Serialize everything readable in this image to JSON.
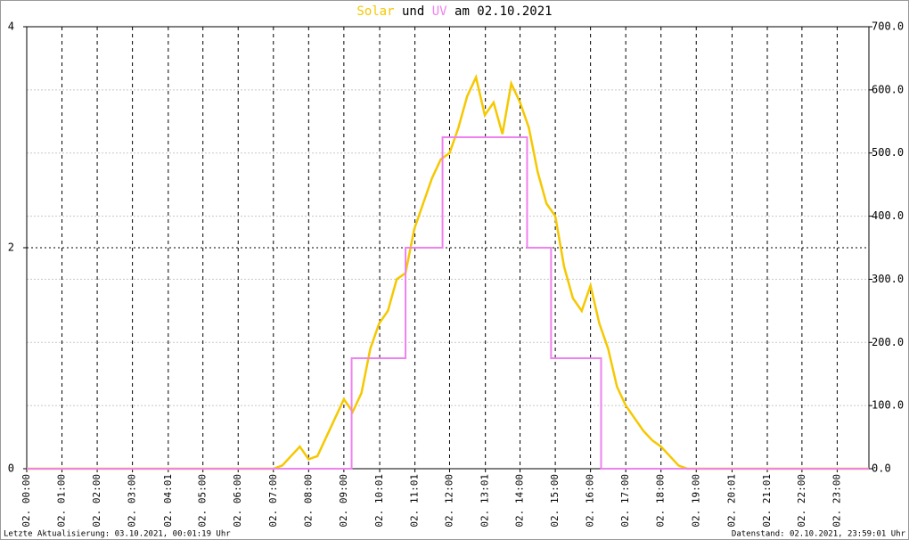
{
  "chart_data": {
    "type": "line",
    "title_connector": "und",
    "title_date": "am 02.10.2021",
    "footer_left": "Letzte Aktualisierung: 03.10.2021, 00:01:19 Uhr",
    "footer_right": "Datenstand: 02.10.2021, 23:59:01 Uhr",
    "xlim": [
      0,
      23.9
    ],
    "xticks": [
      {
        "value": 0,
        "label": "02. 00:00"
      },
      {
        "value": 1,
        "label": "02. 01:00"
      },
      {
        "value": 2,
        "label": "02. 02:00"
      },
      {
        "value": 3,
        "label": "02. 03:00"
      },
      {
        "value": 4.0167,
        "label": "02. 04:01"
      },
      {
        "value": 5,
        "label": "02. 05:00"
      },
      {
        "value": 6,
        "label": "02. 06:00"
      },
      {
        "value": 7,
        "label": "02. 07:00"
      },
      {
        "value": 8,
        "label": "02. 08:00"
      },
      {
        "value": 9,
        "label": "02. 09:00"
      },
      {
        "value": 10.0167,
        "label": "02. 10:01"
      },
      {
        "value": 11.0167,
        "label": "02. 11:01"
      },
      {
        "value": 12,
        "label": "02. 12:00"
      },
      {
        "value": 13.0167,
        "label": "02. 13:01"
      },
      {
        "value": 14,
        "label": "02. 14:00"
      },
      {
        "value": 15,
        "label": "02. 15:00"
      },
      {
        "value": 16,
        "label": "02. 16:00"
      },
      {
        "value": 17,
        "label": "02. 17:00"
      },
      {
        "value": 18,
        "label": "02. 18:00"
      },
      {
        "value": 19,
        "label": "02. 19:00"
      },
      {
        "value": 20.0167,
        "label": "02. 20:01"
      },
      {
        "value": 21.0167,
        "label": "02. 21:01"
      },
      {
        "value": 22,
        "label": "02. 22:00"
      },
      {
        "value": 23,
        "label": "02. 23:00"
      }
    ],
    "ylim": [
      0,
      4
    ],
    "yticks": [
      0,
      2,
      4
    ],
    "y2lim": [
      0,
      700
    ],
    "y2ticks": [
      {
        "value": 0,
        "label": "0.0"
      },
      {
        "value": 100,
        "label": "100.0"
      },
      {
        "value": 200,
        "label": "200.0"
      },
      {
        "value": 300,
        "label": "300.0"
      },
      {
        "value": 400,
        "label": "400.0"
      },
      {
        "value": 500,
        "label": "500.0"
      },
      {
        "value": 600,
        "label": "600.0"
      },
      {
        "value": 700,
        "label": "700.0"
      }
    ],
    "grid": true,
    "series": [
      {
        "name": "Solar",
        "color": "#f5c800",
        "axis": "y2",
        "x": [
          0,
          7,
          7.25,
          7.5,
          7.75,
          8,
          8.25,
          8.5,
          8.75,
          9,
          9.25,
          9.5,
          9.75,
          10,
          10.25,
          10.5,
          10.75,
          11,
          11.25,
          11.5,
          11.75,
          12,
          12.25,
          12.5,
          12.75,
          13,
          13.25,
          13.5,
          13.75,
          14,
          14.25,
          14.5,
          14.75,
          15,
          15.25,
          15.5,
          15.75,
          16,
          16.25,
          16.5,
          16.75,
          17,
          17.25,
          17.5,
          17.75,
          18,
          18.25,
          18.5,
          18.75,
          19,
          23.9
        ],
        "values": [
          0,
          0,
          5,
          20,
          35,
          15,
          20,
          50,
          80,
          110,
          90,
          120,
          190,
          230,
          250,
          300,
          310,
          380,
          420,
          460,
          490,
          500,
          540,
          590,
          620,
          560,
          580,
          530,
          610,
          580,
          540,
          470,
          420,
          400,
          320,
          270,
          250,
          290,
          230,
          190,
          130,
          100,
          80,
          60,
          45,
          35,
          20,
          5,
          0,
          0,
          0
        ]
      },
      {
        "name": "UV",
        "color": "#ee82ee",
        "x": [
          0,
          9.22,
          9.22,
          10.75,
          10.75,
          11.8,
          11.8,
          14.2,
          14.2,
          14.88,
          14.88,
          16.3,
          16.3,
          23.9
        ],
        "values": [
          0,
          0,
          1,
          1,
          2,
          2,
          3,
          3,
          2,
          2,
          1,
          1,
          0,
          0
        ]
      }
    ]
  }
}
